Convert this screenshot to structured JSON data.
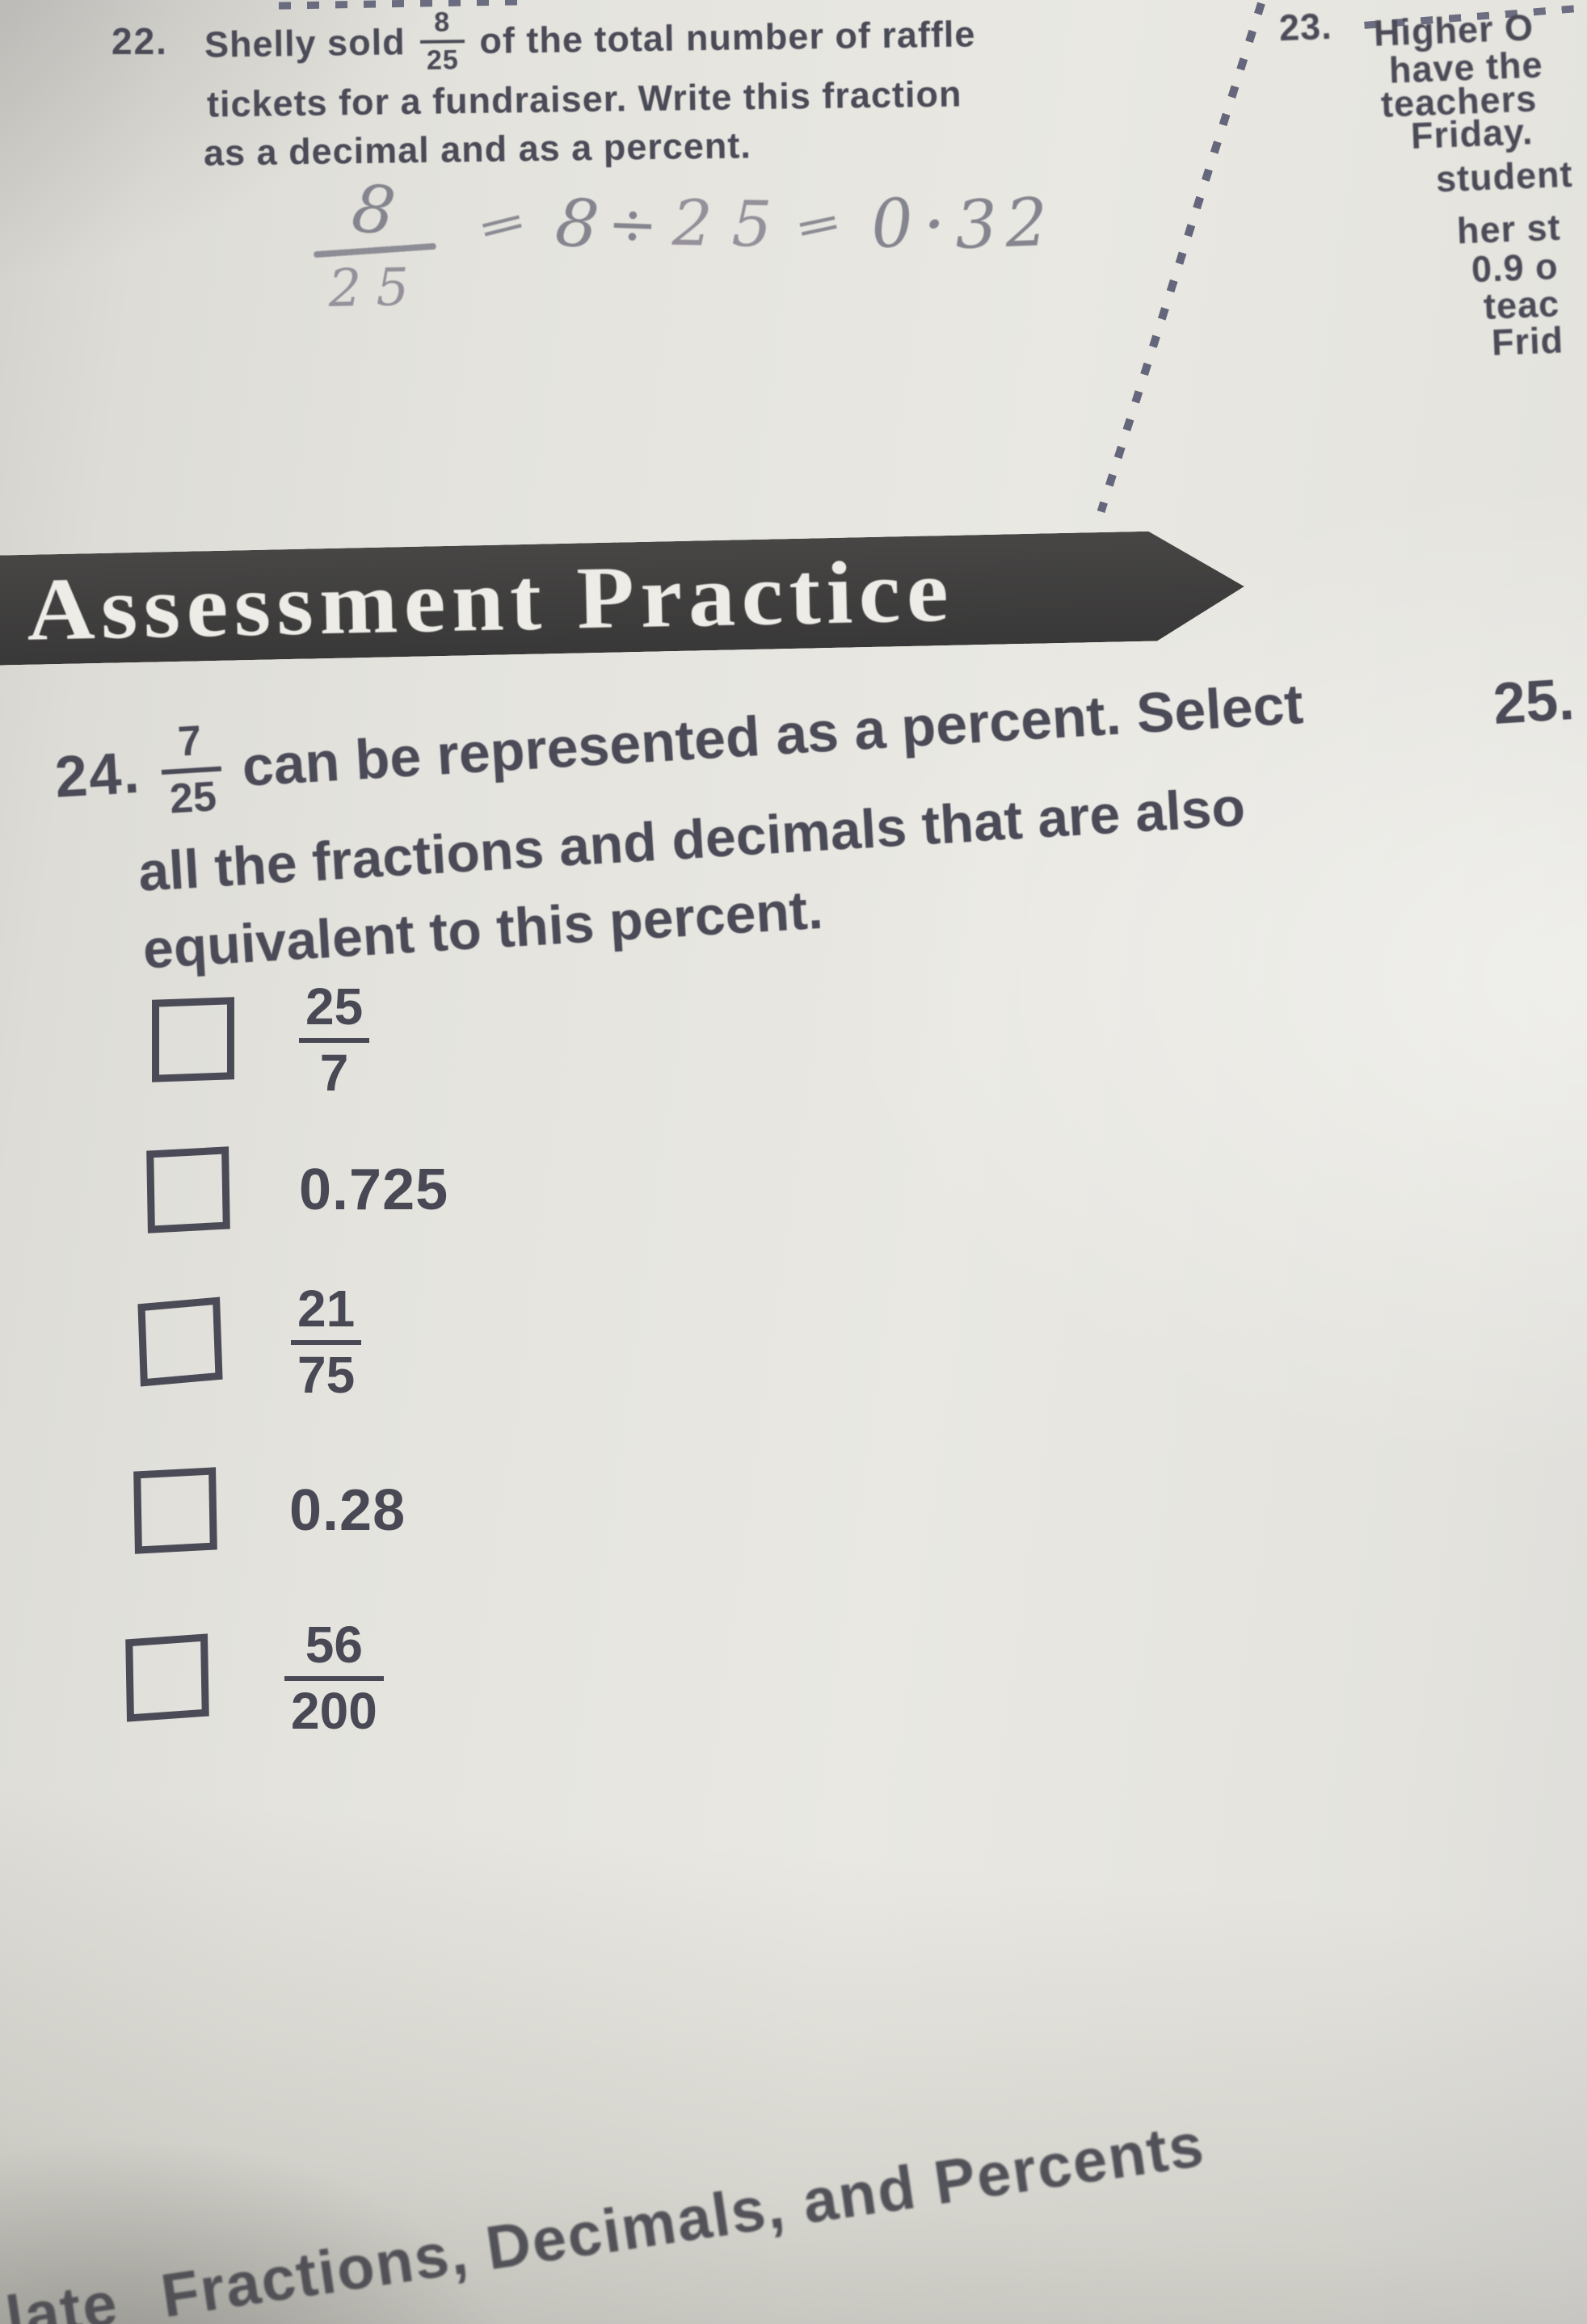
{
  "colors": {
    "paper": "#e6e5df",
    "print_text": "#4b4b58",
    "pencil_handwriting": "#85858f",
    "banner_background": "#3c3b3a",
    "banner_text": "#edece7",
    "checkbox_border": "#4b4b58"
  },
  "question22": {
    "number": "22.",
    "line1_before": "Shelly sold",
    "fraction": {
      "numerator": "8",
      "denominator": "25"
    },
    "line1_after": "of the total number of raffle",
    "line2": "tickets for a fundraiser. Write this fraction",
    "line3": "as a decimal and as a percent.",
    "work": {
      "fraction": {
        "numerator": "8",
        "denominator": "25"
      },
      "steps": [
        "=",
        "8",
        "÷",
        "25",
        "=",
        "0",
        "·",
        "32"
      ]
    }
  },
  "question23": {
    "number": "23.",
    "lines": [
      "Higher O",
      "have the",
      "teachers",
      "Friday.",
      "student",
      "her st",
      "0.9 o",
      "teac",
      "Frid"
    ]
  },
  "banner": {
    "title": "Assessment Practice"
  },
  "question24": {
    "number": "24.",
    "fraction": {
      "numerator": "7",
      "denominator": "25"
    },
    "line1": "can be represented as a percent. Select",
    "line2": "all the fractions and decimals that are also",
    "line3": "equivalent to this percent.",
    "options": [
      {
        "kind": "fraction",
        "numerator": "25",
        "denominator": "7",
        "checked": false
      },
      {
        "kind": "decimal",
        "value": "0.725",
        "checked": false
      },
      {
        "kind": "fraction",
        "numerator": "21",
        "denominator": "75",
        "checked": false
      },
      {
        "kind": "decimal",
        "value": "0.28",
        "checked": false
      },
      {
        "kind": "fraction",
        "numerator": "56",
        "denominator": "200",
        "checked": false
      }
    ]
  },
  "question25": {
    "number": "25."
  },
  "footer": {
    "fragment": "late",
    "title": "Fractions, Decimals, and Percents"
  }
}
